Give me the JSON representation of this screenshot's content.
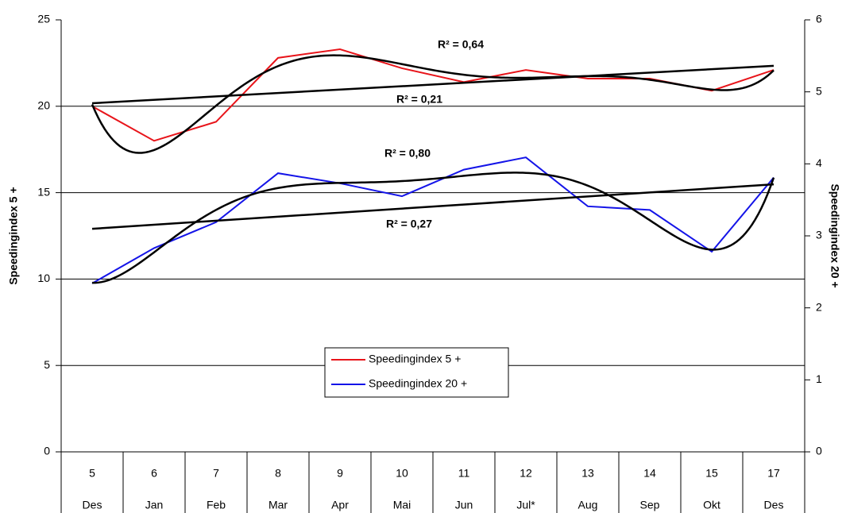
{
  "chart_data": {
    "type": "line",
    "categories": [
      "5",
      "6",
      "7",
      "8",
      "9",
      "10",
      "11",
      "12",
      "13",
      "14",
      "15",
      "17"
    ],
    "periods": [
      "Des",
      "Jan",
      "Feb",
      "Mar",
      "Apr",
      "Mai",
      "Jun",
      "Jul*",
      "Aug",
      "Sep",
      "Okt",
      "Des"
    ],
    "y_label": "Speedingindex 5 +",
    "y2_label": "Speedingindex 20 +",
    "ylim": [
      0,
      25
    ],
    "yticks": [
      0,
      5,
      10,
      15,
      20,
      25
    ],
    "y2lim": [
      0,
      6
    ],
    "y2ticks": [
      0,
      1,
      2,
      3,
      4,
      5,
      6
    ],
    "grid": true,
    "legend": "center",
    "trendlines": {
      "linear": true,
      "polynomial_order": 6
    },
    "series": [
      {
        "name": "Speedingindex 5 +",
        "color": "#e8141a",
        "axis": "y",
        "values": [
          20.0,
          18.0,
          19.1,
          22.8,
          23.3,
          22.2,
          21.4,
          22.1,
          21.6,
          21.6,
          20.9,
          22.1
        ]
      },
      {
        "name": "Speedingindex 20 +",
        "color": "#1414e8",
        "axis": "y2",
        "values": [
          2.34,
          2.83,
          3.19,
          3.87,
          3.73,
          3.55,
          3.92,
          4.09,
          3.41,
          3.36,
          2.78,
          3.81
        ]
      }
    ],
    "annotations": [
      "R² = 0,64",
      "R² = 0,21",
      "R² = 0,80",
      "R² = 0,27"
    ]
  }
}
